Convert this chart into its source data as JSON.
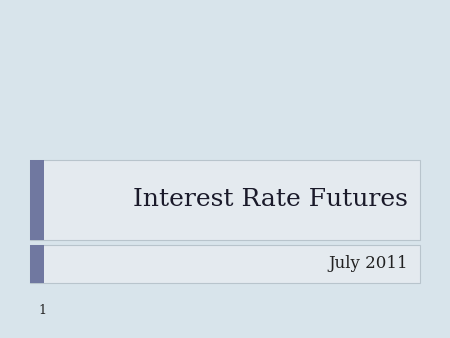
{
  "background_color": "#d8e4eb",
  "title_text": "Interest Rate Futures",
  "subtitle_text": "July 2011",
  "page_number": "1",
  "title_box_color": "#e4eaef",
  "title_box_border_color": "#b8c4cc",
  "subtitle_box_color": "#e4eaef",
  "accent_color": "#7078a0",
  "title_font_size": 18,
  "subtitle_font_size": 12,
  "page_num_font_size": 9,
  "title_text_color": "#1a1a2a",
  "subtitle_text_color": "#222222"
}
